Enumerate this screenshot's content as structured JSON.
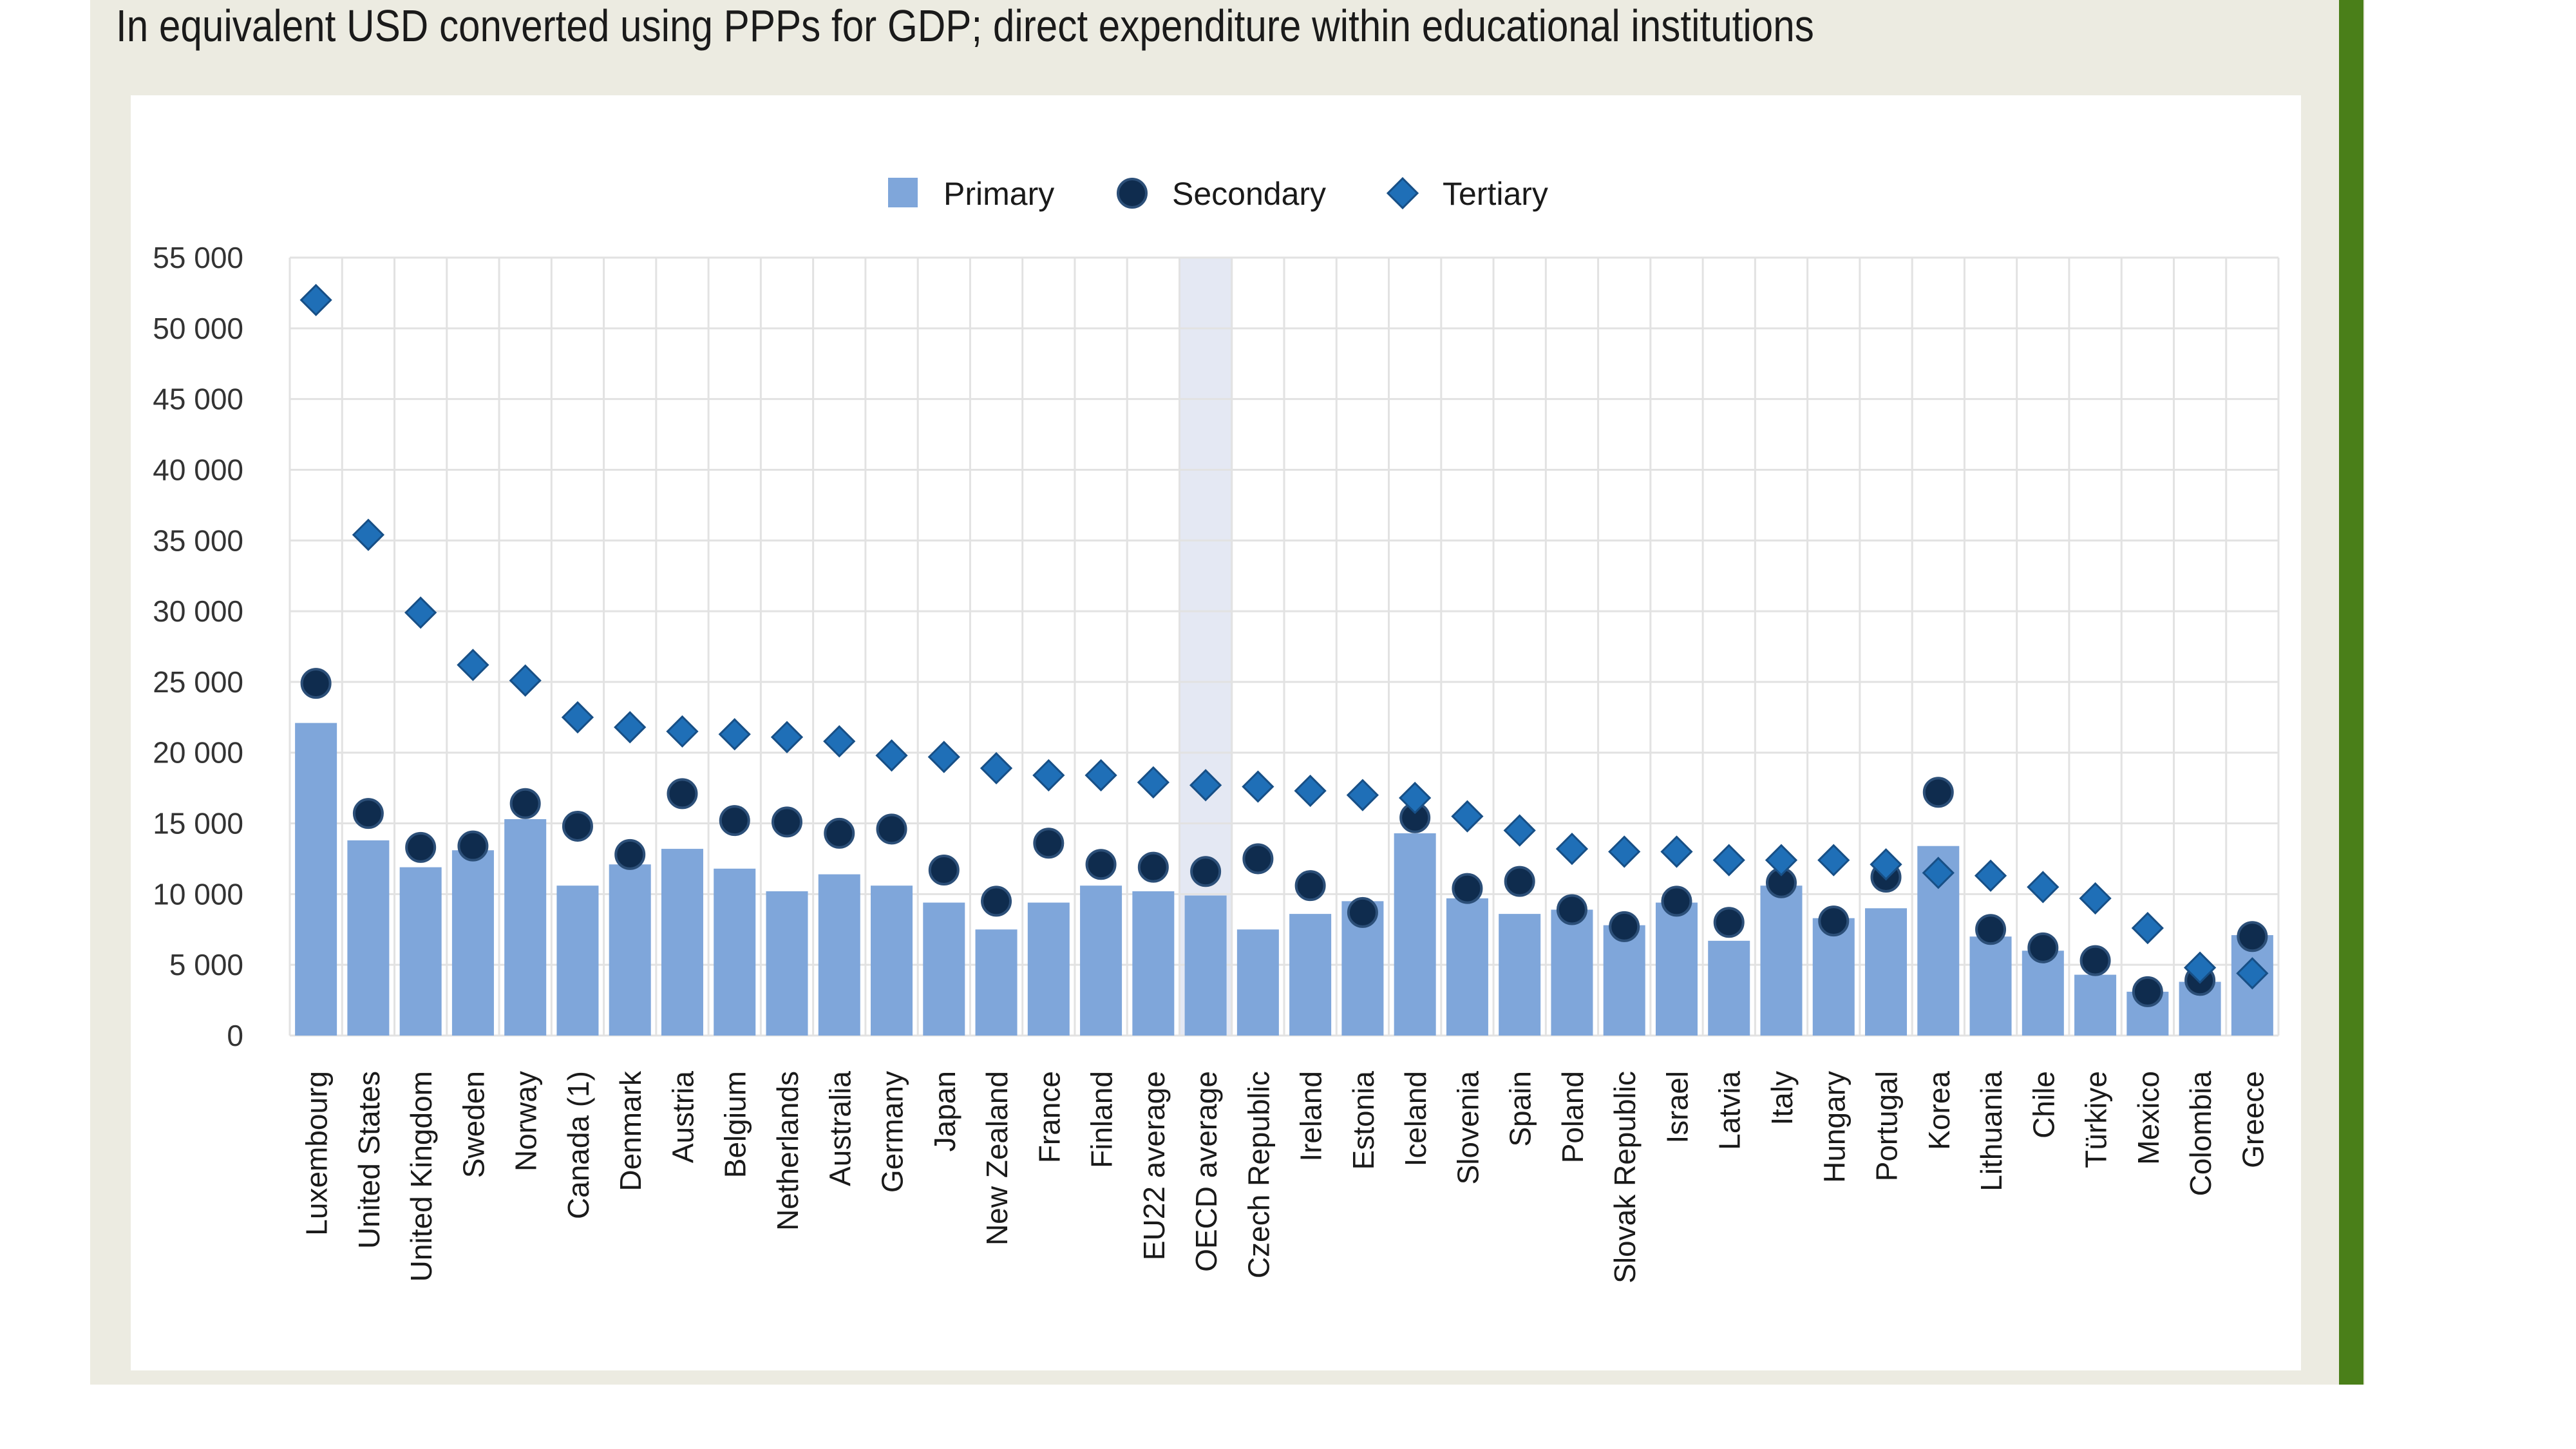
{
  "subtitle": "In equivalent USD converted using PPPs for GDP; direct expenditure within educational institutions",
  "colors": {
    "primary": "#7fa6da",
    "secondary": "#0f2c4e",
    "tertiary": "#1f6fb7",
    "highlight_band": "#e4e8f3",
    "frame": "#ecebe1",
    "accent_bar": "#4a7f19"
  },
  "chart_data": {
    "type": "bar",
    "legend": {
      "position": "top-center",
      "items": [
        "Primary",
        "Secondary",
        "Tertiary"
      ]
    },
    "ylim": [
      0,
      55000
    ],
    "yticks": [
      0,
      5000,
      10000,
      15000,
      20000,
      25000,
      30000,
      35000,
      40000,
      45000,
      50000,
      55000
    ],
    "ytick_labels": [
      "0",
      "5 000",
      "10 000",
      "15 000",
      "20 000",
      "25 000",
      "30 000",
      "35 000",
      "40 000",
      "45 000",
      "50 000",
      "55 000"
    ],
    "grid": true,
    "highlight_category": "OECD average",
    "categories": [
      "Luxembourg",
      "United States",
      "United Kingdom",
      "Sweden",
      "Norway",
      "Canada (1)",
      "Denmark",
      "Austria",
      "Belgium",
      "Netherlands",
      "Australia",
      "Germany",
      "Japan",
      "New Zealand",
      "France",
      "Finland",
      "EU22 average",
      "OECD average",
      "Czech Republic",
      "Ireland",
      "Estonia",
      "Iceland",
      "Slovenia",
      "Spain",
      "Poland",
      "Slovak Republic",
      "Israel",
      "Latvia",
      "Italy",
      "Hungary",
      "Portugal",
      "Korea",
      "Lithuania",
      "Chile",
      "Türkiye",
      "Mexico",
      "Colombia",
      "Greece"
    ],
    "series": [
      {
        "name": "Primary",
        "mark": "bar",
        "values": [
          22100,
          13800,
          11900,
          13100,
          15300,
          10600,
          12100,
          13200,
          11800,
          10200,
          11400,
          10600,
          9400,
          7500,
          9400,
          10600,
          10200,
          9900,
          7500,
          8600,
          9500,
          14300,
          9700,
          8600,
          8900,
          7800,
          9400,
          6700,
          10600,
          8300,
          9000,
          13400,
          7000,
          6000,
          4300,
          3100,
          3800,
          7100
        ]
      },
      {
        "name": "Secondary",
        "mark": "circle",
        "values": [
          24900,
          15700,
          13300,
          13400,
          16400,
          14800,
          12800,
          17100,
          15200,
          15100,
          14300,
          14600,
          11700,
          9500,
          13600,
          12100,
          11900,
          11600,
          12500,
          10600,
          8700,
          15400,
          10400,
          10900,
          8900,
          7700,
          9500,
          8000,
          10800,
          8100,
          11200,
          17200,
          7500,
          6200,
          5300,
          3100,
          3900,
          7000
        ]
      },
      {
        "name": "Tertiary",
        "mark": "diamond",
        "values": [
          52000,
          35400,
          29900,
          26200,
          25100,
          22500,
          21800,
          21500,
          21300,
          21100,
          20800,
          19800,
          19700,
          18900,
          18400,
          18400,
          17900,
          17700,
          17600,
          17300,
          17000,
          16800,
          15500,
          14500,
          13200,
          13000,
          13000,
          12400,
          12400,
          12400,
          12100,
          11500,
          11300,
          10500,
          9700,
          7600,
          4800,
          4400
        ]
      }
    ]
  }
}
